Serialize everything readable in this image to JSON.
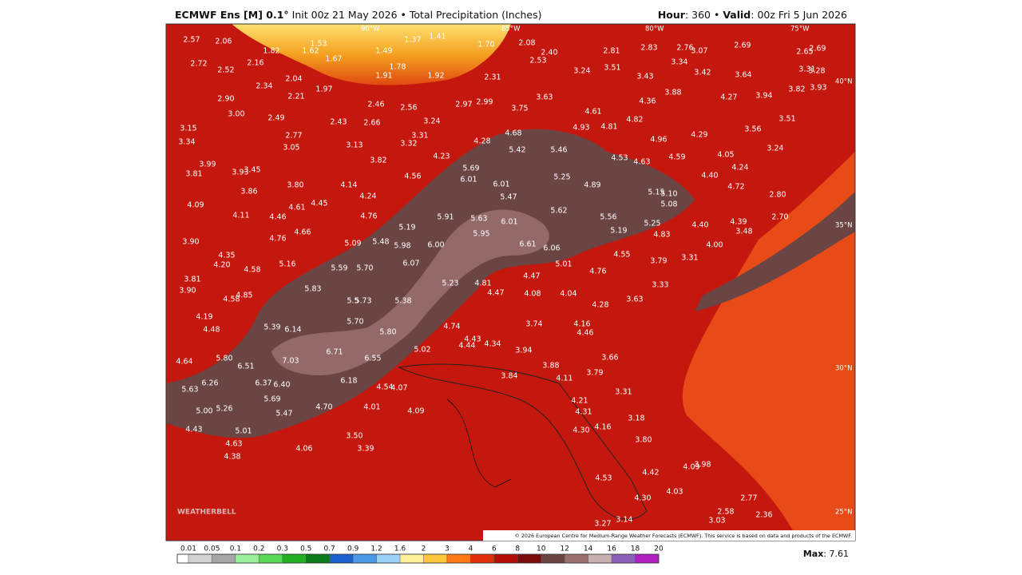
{
  "header": {
    "model": "ECMWF Ens [M] 0.1°",
    "info": "Init 00z 21 May 2026 • Total Precipitation (Inches)",
    "hour_key": "Hour",
    "hour_val": ": 360 • ",
    "valid_key": "Valid",
    "valid_val": ": 00z Fri 5 Jun 2026"
  },
  "map": {
    "lon_labels": [
      "90°W",
      "85°W",
      "80°W",
      "75°W"
    ],
    "lat_labels": [
      "40°N",
      "35°N",
      "30°N",
      "25°N"
    ],
    "logo": "WEATHERBELL",
    "credit": "© 2026 European Centre for Medium-Range Weather Forecasts (ECMWF). This service is based on data and products of the ECMWF.",
    "labels": [
      "2.57",
      "2.06",
      "1.82",
      "1.53",
      "1.62",
      "1.49",
      "1.37",
      "1.41",
      "1.70",
      "2.08",
      "2.40",
      "2.53",
      "2.81",
      "2.83",
      "2.76",
      "3.07",
      "2.69",
      "2.65",
      "2.69",
      "2.72",
      "2.16",
      "1.67",
      "1.78",
      "3.34",
      "2.52",
      "2.04",
      "1.97",
      "1.91",
      "1.92",
      "2.31",
      "3.24",
      "3.51",
      "3.43",
      "3.42",
      "3.64",
      "3.31",
      "3.28",
      "3.93",
      "3.82",
      "2.34",
      "2.21",
      "2.90",
      "2.46",
      "2.56",
      "2.97",
      "2.99",
      "3.63",
      "3.75",
      "3.88",
      "4.36",
      "4.27",
      "3.94",
      "4.61",
      "3.00",
      "2.49",
      "2.43",
      "2.66",
      "3.24",
      "4.93",
      "4.81",
      "4.82",
      "3.51",
      "3.15",
      "2.77",
      "3.31",
      "4.68",
      "4.96",
      "4.29",
      "3.56",
      "3.34",
      "3.05",
      "3.13",
      "3.32",
      "4.28",
      "5.42",
      "5.46",
      "3.24",
      "3.99",
      "3.82",
      "4.23",
      "4.53",
      "4.63",
      "4.59",
      "4.05",
      "3.81",
      "3.93",
      "3.45",
      "5.69",
      "6.01",
      "4.56",
      "5.25",
      "4.40",
      "4.24",
      "4.14",
      "3.80",
      "6.01",
      "4.89",
      "5.15",
      "5.10",
      "4.72",
      "3.86",
      "4.24",
      "5.47",
      "5.08",
      "2.80",
      "4.09",
      "4.61",
      "4.45",
      "5.62",
      "5.56",
      "4.11",
      "4.46",
      "4.76",
      "5.91",
      "5.63",
      "6.01",
      "5.25",
      "4.40",
      "4.39",
      "2.70",
      "5.19",
      "5.19",
      "3.48",
      "4.66",
      "4.76",
      "3.90",
      "5.09",
      "5.48",
      "5.98",
      "6.00",
      "5.95",
      "6.61",
      "6.06",
      "4.83",
      "4.00",
      "4.35",
      "5.16",
      "4.20",
      "4.58",
      "5.59",
      "5.70",
      "6.07",
      "5.01",
      "4.55",
      "3.79",
      "3.31",
      "4.76",
      "3.81",
      "4.47",
      "5.23",
      "4.81",
      "3.33",
      "3.90",
      "5.83",
      "4.47",
      "4.08",
      "4.04",
      "3.63",
      "4.58",
      "4.85",
      "5.5",
      "5.73",
      "5.38",
      "4.28",
      "4.19",
      "5.70",
      "4.74",
      "3.74",
      "4.16",
      "4.46",
      "4.48",
      "5.39",
      "6.14",
      "5.80",
      "4.43",
      "4.44",
      "4.34",
      "6.71",
      "5.02",
      "3.94",
      "4.64",
      "5.80",
      "7.03",
      "6.55",
      "3.66",
      "3.88",
      "6.51",
      "3.84",
      "4.11",
      "3.79",
      "6.26",
      "6.37",
      "6.40",
      "6.18",
      "4.54",
      "4.07",
      "5.63",
      "3.31",
      "5.69",
      "4.21",
      "5.00",
      "5.26",
      "5.47",
      "4.70",
      "4.01",
      "4.09",
      "4.31",
      "3.18",
      "4.43",
      "5.01",
      "4.30",
      "4.16",
      "3.50",
      "3.80",
      "4.63",
      "4.06",
      "3.39",
      "4.38",
      "4.09",
      "3.98",
      "4.42",
      "4.53",
      "4.03",
      "4.30",
      "2.77",
      "2.58",
      "2.36",
      "3.14",
      "3.03",
      "3.27"
    ]
  },
  "legend": {
    "ticks": [
      "0.01",
      "0.05",
      "0.1",
      "0.2",
      "0.3",
      "0.5",
      "0.7",
      "0.9",
      "1.2",
      "1.6",
      "2",
      "3",
      "4",
      "6",
      "8",
      "10",
      "12",
      "14",
      "16",
      "18",
      "20"
    ],
    "colors": [
      "#ffffff",
      "#d2d2d2",
      "#a6a6a6",
      "#9af09a",
      "#5ad85a",
      "#22b022",
      "#0b7a1b",
      "#1e5fd0",
      "#4a9ae8",
      "#9cd2f5",
      "#fff09a",
      "#ffc83c",
      "#ff7a14",
      "#e0300e",
      "#b41008",
      "#7a0c0c",
      "#6b4444",
      "#9a7070",
      "#c8b0b0",
      "#8a60b8",
      "#b020c0"
    ],
    "max_key": "Max",
    "max_val": ": 7.61"
  }
}
